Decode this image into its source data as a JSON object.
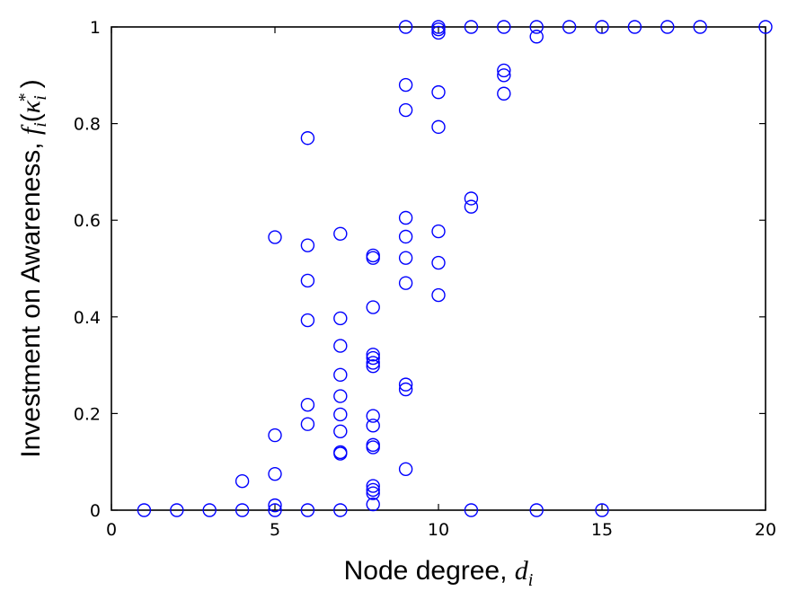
{
  "chart_data": {
    "type": "scatter",
    "xlabel": "Node degree, ",
    "xlabel_var": "d",
    "xlabel_sub": "i",
    "ylabel": "Investment on Awareness, ",
    "ylabel_func": "f",
    "ylabel_func_sub": "i",
    "ylabel_arg": "κ",
    "ylabel_arg_sub": "i",
    "ylabel_arg_sup": "*",
    "xlim": [
      0,
      20
    ],
    "ylim": [
      0,
      1
    ],
    "xticks": [
      0,
      5,
      10,
      15,
      20
    ],
    "yticks": [
      0,
      0.2,
      0.4,
      0.6,
      0.8,
      1
    ],
    "ytick_labels": [
      "0",
      "0.2",
      "0.4",
      "0.6",
      "0.8",
      "1"
    ],
    "grid": false,
    "marker": "circle-open",
    "color": "#0000ff",
    "points": [
      [
        1,
        0.0
      ],
      [
        2,
        0.0
      ],
      [
        3,
        0.0
      ],
      [
        4,
        0.0
      ],
      [
        4,
        0.06
      ],
      [
        5,
        0.565
      ],
      [
        5,
        0.155
      ],
      [
        5,
        0.075
      ],
      [
        5,
        0.01
      ],
      [
        5,
        0.0
      ],
      [
        6,
        0.77
      ],
      [
        6,
        0.548
      ],
      [
        6,
        0.475
      ],
      [
        6,
        0.393
      ],
      [
        6,
        0.218
      ],
      [
        6,
        0.178
      ],
      [
        6,
        0.0
      ],
      [
        7,
        0.572
      ],
      [
        7,
        0.397
      ],
      [
        7,
        0.34
      ],
      [
        7,
        0.28
      ],
      [
        7,
        0.236
      ],
      [
        7,
        0.198
      ],
      [
        7,
        0.163
      ],
      [
        7,
        0.12
      ],
      [
        7,
        0.117
      ],
      [
        7,
        0.0
      ],
      [
        8,
        0.527
      ],
      [
        8,
        0.522
      ],
      [
        8,
        0.42
      ],
      [
        8,
        0.322
      ],
      [
        8,
        0.315
      ],
      [
        8,
        0.305
      ],
      [
        8,
        0.298
      ],
      [
        8,
        0.195
      ],
      [
        8,
        0.175
      ],
      [
        8,
        0.135
      ],
      [
        8,
        0.13
      ],
      [
        8,
        0.05
      ],
      [
        8,
        0.042
      ],
      [
        8,
        0.035
      ],
      [
        8,
        0.012
      ],
      [
        9,
        1.0
      ],
      [
        9,
        0.88
      ],
      [
        9,
        0.828
      ],
      [
        9,
        0.605
      ],
      [
        9,
        0.566
      ],
      [
        9,
        0.522
      ],
      [
        9,
        0.47
      ],
      [
        9,
        0.26
      ],
      [
        9,
        0.25
      ],
      [
        9,
        0.085
      ],
      [
        10,
        1.0
      ],
      [
        10,
        0.995
      ],
      [
        10,
        0.988
      ],
      [
        10,
        0.865
      ],
      [
        10,
        0.793
      ],
      [
        10,
        0.577
      ],
      [
        10,
        0.512
      ],
      [
        10,
        0.445
      ],
      [
        11,
        1.0
      ],
      [
        11,
        0.645
      ],
      [
        11,
        0.628
      ],
      [
        11,
        0.0
      ],
      [
        12,
        1.0
      ],
      [
        12,
        0.91
      ],
      [
        12,
        0.9
      ],
      [
        12,
        0.862
      ],
      [
        13,
        1.0
      ],
      [
        13,
        0.98
      ],
      [
        13,
        0.0
      ],
      [
        14,
        1.0
      ],
      [
        15,
        1.0
      ],
      [
        15,
        0.0
      ],
      [
        16,
        1.0
      ],
      [
        17,
        1.0
      ],
      [
        18,
        1.0
      ],
      [
        20,
        1.0
      ]
    ]
  }
}
